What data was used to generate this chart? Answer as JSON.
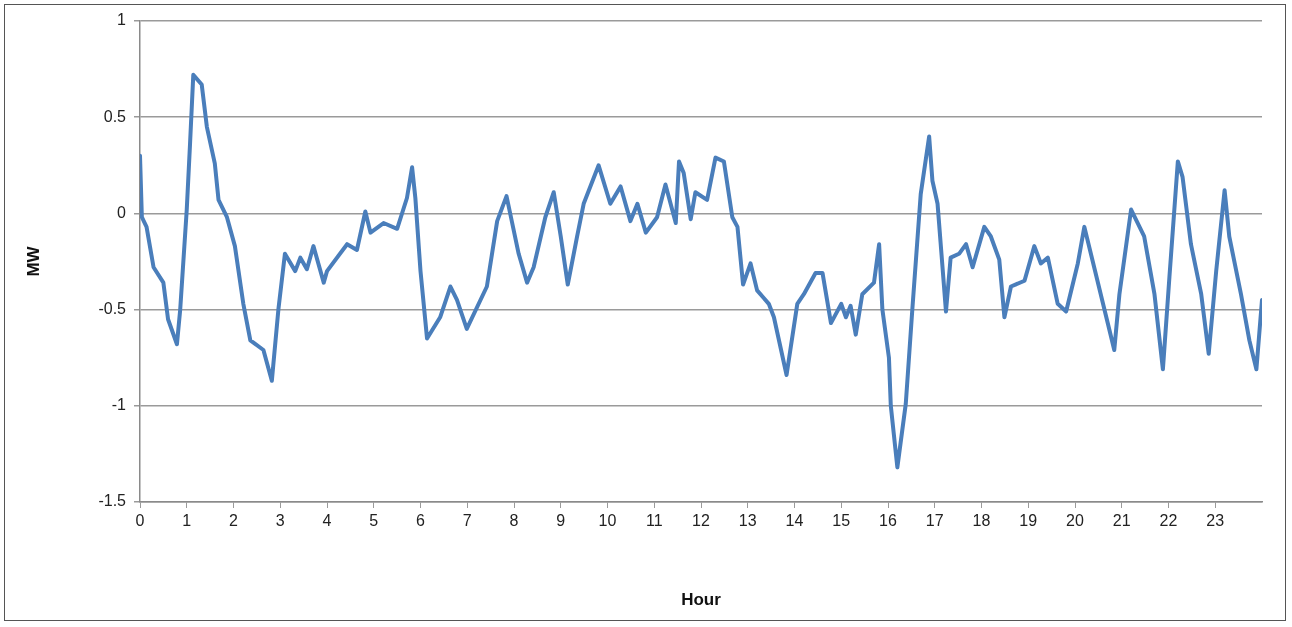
{
  "chart_data": {
    "type": "line",
    "xlabel": "Hour",
    "ylabel": "MW",
    "xlim": [
      0,
      24
    ],
    "xticks": [
      0,
      1,
      2,
      3,
      4,
      5,
      6,
      7,
      8,
      9,
      10,
      11,
      12,
      13,
      14,
      15,
      16,
      17,
      18,
      19,
      20,
      21,
      22,
      23
    ],
    "ylim": [
      -1.5,
      1
    ],
    "yticks": [
      -1.5,
      -1,
      -0.5,
      0,
      0.5,
      1
    ],
    "grid": "y",
    "legend": false,
    "marker": "none",
    "line_style": "solid",
    "series": [
      {
        "color": "#4a7ebb",
        "x": [
          0,
          0.04,
          0.14,
          0.29,
          0.5,
          0.6,
          0.79,
          0.86,
          1.0,
          1.07,
          1.14,
          1.32,
          1.43,
          1.6,
          1.68,
          1.86,
          2.03,
          2.21,
          2.36,
          2.64,
          2.82,
          2.96,
          3.1,
          3.32,
          3.43,
          3.57,
          3.71,
          3.93,
          4.0,
          4.43,
          4.64,
          4.82,
          4.93,
          5.21,
          5.5,
          5.71,
          5.82,
          5.89,
          6.0,
          6.14,
          6.42,
          6.64,
          6.78,
          6.99,
          7.42,
          7.64,
          7.84,
          8.1,
          8.28,
          8.42,
          8.67,
          8.85,
          9.0,
          9.15,
          9.35,
          9.49,
          9.81,
          10.06,
          10.28,
          10.49,
          10.64,
          10.82,
          11.06,
          11.24,
          11.46,
          11.53,
          11.63,
          11.78,
          11.88,
          12.13,
          12.31,
          12.49,
          12.67,
          12.78,
          12.9,
          13.06,
          13.2,
          13.45,
          13.56,
          13.83,
          14.06,
          14.2,
          14.45,
          14.6,
          14.78,
          15.0,
          15.1,
          15.2,
          15.31,
          15.45,
          15.7,
          15.81,
          15.88,
          16.02,
          16.06,
          16.2,
          16.38,
          16.52,
          16.7,
          16.88,
          16.95,
          17.06,
          17.24,
          17.34,
          17.52,
          17.67,
          17.81,
          18.06,
          18.2,
          18.38,
          18.49,
          18.63,
          18.92,
          19.13,
          19.27,
          19.42,
          19.63,
          19.81,
          20.06,
          20.2,
          20.41,
          20.7,
          20.84,
          20.95,
          21.2,
          21.48,
          21.7,
          21.88,
          22.02,
          22.2,
          22.3,
          22.48,
          22.7,
          22.86,
          23.02,
          23.2,
          23.3,
          23.55,
          23.73,
          23.88,
          24.0
        ],
        "values": [
          0.3,
          -0.02,
          -0.07,
          -0.28,
          -0.36,
          -0.55,
          -0.68,
          -0.5,
          0.02,
          0.36,
          0.72,
          0.67,
          0.45,
          0.26,
          0.07,
          -0.02,
          -0.17,
          -0.47,
          -0.66,
          -0.71,
          -0.87,
          -0.5,
          -0.21,
          -0.3,
          -0.23,
          -0.29,
          -0.17,
          -0.36,
          -0.3,
          -0.16,
          -0.19,
          0.01,
          -0.1,
          -0.05,
          -0.08,
          0.08,
          0.24,
          0.08,
          -0.3,
          -0.65,
          -0.54,
          -0.38,
          -0.45,
          -0.6,
          -0.38,
          -0.04,
          0.09,
          -0.21,
          -0.36,
          -0.28,
          -0.02,
          0.11,
          -0.12,
          -0.37,
          -0.12,
          0.05,
          0.25,
          0.05,
          0.14,
          -0.04,
          0.05,
          -0.1,
          -0.02,
          0.15,
          -0.05,
          0.27,
          0.21,
          -0.03,
          0.11,
          0.07,
          0.29,
          0.27,
          -0.02,
          -0.07,
          -0.37,
          -0.26,
          -0.4,
          -0.47,
          -0.54,
          -0.84,
          -0.47,
          -0.42,
          -0.31,
          -0.31,
          -0.57,
          -0.47,
          -0.54,
          -0.48,
          -0.63,
          -0.42,
          -0.36,
          -0.16,
          -0.5,
          -0.75,
          -1.0,
          -1.32,
          -0.99,
          -0.5,
          0.1,
          0.4,
          0.17,
          0.05,
          -0.51,
          -0.23,
          -0.21,
          -0.16,
          -0.28,
          -0.07,
          -0.12,
          -0.24,
          -0.54,
          -0.38,
          -0.35,
          -0.17,
          -0.26,
          -0.23,
          -0.47,
          -0.51,
          -0.26,
          -0.07,
          -0.28,
          -0.57,
          -0.71,
          -0.42,
          0.02,
          -0.12,
          -0.42,
          -0.81,
          -0.33,
          0.27,
          0.19,
          -0.16,
          -0.42,
          -0.73,
          -0.3,
          0.12,
          -0.12,
          -0.42,
          -0.66,
          -0.81,
          -0.45
        ]
      }
    ]
  }
}
